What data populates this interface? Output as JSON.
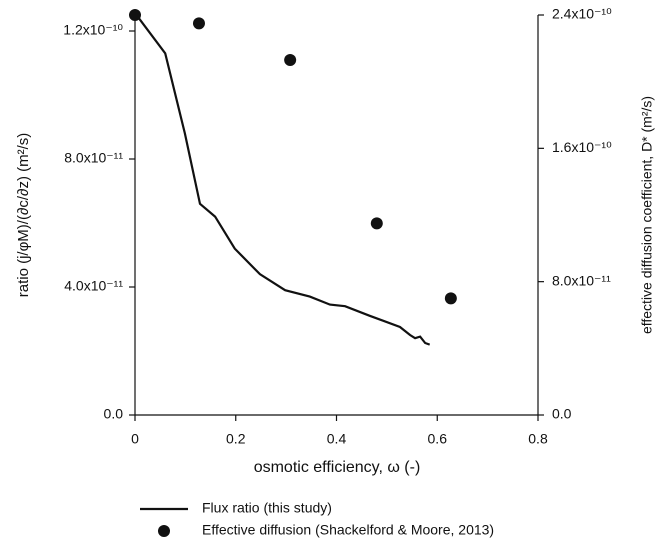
{
  "chart_data": {
    "type": "line+scatter",
    "xlabel": "osmotic efficiency, ω (-)",
    "ylabel": "ratio (j/φM)/(∂c/∂z) (m²/s)",
    "y2label": "effective diffusion coefficient, D* (m²/s)",
    "xlim": [
      0,
      0.8
    ],
    "xticks": [
      0,
      0.2,
      0.4,
      0.6,
      0.8
    ],
    "ylim": [
      0,
      1.25e-10
    ],
    "yticks": [
      {
        "value": 0,
        "label": "0.0"
      },
      {
        "value": 4e-11,
        "label": "4.0x10⁻¹¹"
      },
      {
        "value": 8e-11,
        "label": "8.0x10⁻¹¹"
      },
      {
        "value": 1.2e-10,
        "label": "1.2x10⁻¹⁰"
      }
    ],
    "y2lim": [
      0,
      2.4e-10
    ],
    "y2ticks": [
      {
        "value": 0,
        "label": "0.0"
      },
      {
        "value": 8e-11,
        "label": "8.0x10⁻¹¹"
      },
      {
        "value": 1.6e-10,
        "label": "1.6x10⁻¹⁰"
      },
      {
        "value": 2.4e-10,
        "label": "2.4x10⁻¹⁰"
      }
    ],
    "series": [
      {
        "name": "Flux ratio (this study)",
        "type": "line",
        "color": "#111111",
        "x": [
          0,
          0.06,
          0.099,
          0.129,
          0.159,
          0.198,
          0.248,
          0.298,
          0.347,
          0.387,
          0.417,
          0.466,
          0.526,
          0.546,
          0.556,
          0.566,
          0.576,
          0.585
        ],
        "values": [
          1.256e-10,
          1.13e-10,
          8.8e-11,
          6.6e-11,
          6.2e-11,
          5.2e-11,
          4.4e-11,
          3.9e-11,
          3.7e-11,
          3.45e-11,
          3.4e-11,
          3.1e-11,
          2.75e-11,
          2.5e-11,
          2.4e-11,
          2.45e-11,
          2.25e-11,
          2.2e-11
        ]
      },
      {
        "name": "Effective diffusion (Shackelford & Moore, 2013)",
        "type": "scatter",
        "color": "#111111",
        "axis": "y2",
        "x": [
          0,
          0.127,
          0.308,
          0.48,
          0.627
        ],
        "values": [
          2.4e-10,
          2.35e-10,
          2.13e-10,
          1.15e-10,
          7e-11
        ]
      }
    ]
  }
}
